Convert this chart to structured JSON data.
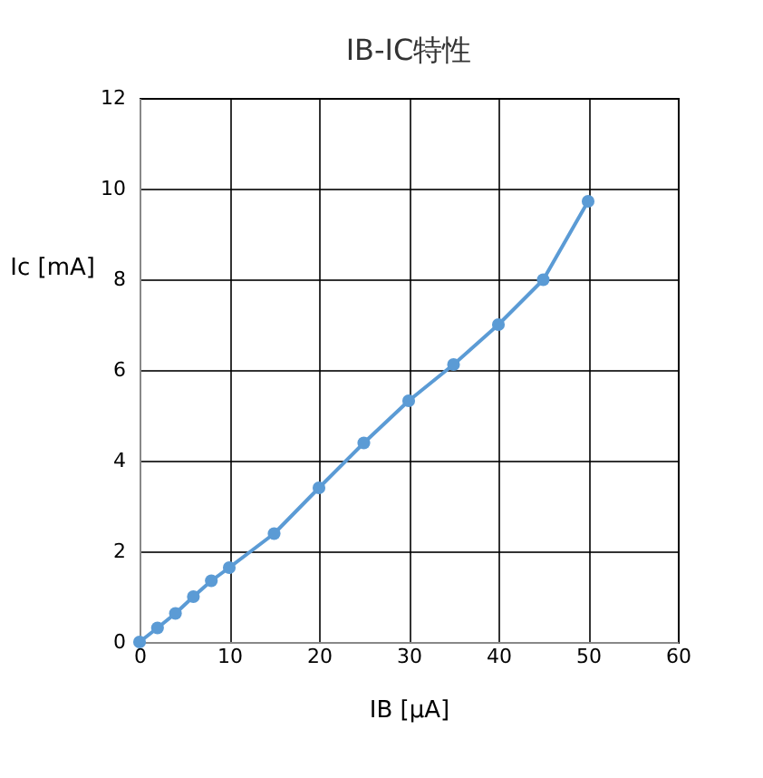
{
  "chart_data": {
    "type": "line",
    "title": "IB-IC特性",
    "xlabel": "IB [μA]",
    "ylabel": "Ic [mA]",
    "x": [
      0,
      2,
      4,
      6,
      8,
      10,
      15,
      20,
      25,
      30,
      35,
      40,
      45,
      50
    ],
    "series": [
      {
        "color": "#5b9bd5",
        "values": [
          0,
          0.31,
          0.63,
          1.0,
          1.35,
          1.64,
          2.39,
          3.4,
          4.39,
          5.32,
          6.12,
          7.0,
          7.99,
          9.72
        ]
      }
    ],
    "xlim": [
      0,
      60
    ],
    "xticks": [
      0,
      10,
      20,
      30,
      40,
      50,
      60
    ],
    "ylim": [
      0,
      12
    ],
    "yticks": [
      0,
      2,
      4,
      6,
      8,
      10,
      12
    ],
    "grid": true,
    "marker": "circle",
    "line_style": "solid"
  }
}
